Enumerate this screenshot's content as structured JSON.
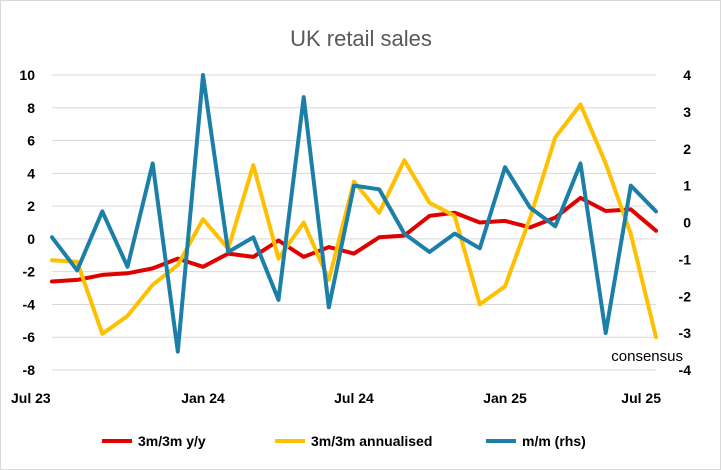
{
  "chart_data": {
    "type": "line",
    "title": "UK retail sales",
    "x": [
      "Jul 23",
      "Aug 23",
      "Sep 23",
      "Oct 23",
      "Nov 23",
      "Dec 23",
      "Jan 24",
      "Feb 24",
      "Mar 24",
      "Apr 24",
      "May 24",
      "Jun 24",
      "Jul 24",
      "Aug 24",
      "Sep 24",
      "Oct 24",
      "Nov 24",
      "Dec 24",
      "Jan 25",
      "Feb 25",
      "Mar 25",
      "Apr 25",
      "May 25",
      "Jun 25",
      "Jul 25"
    ],
    "x_tick_labels": [
      "Jul 23",
      "Jan 24",
      "Jul 24",
      "Jan 25",
      "Jul 25"
    ],
    "y_left": {
      "min": -8,
      "max": 10,
      "step": 2
    },
    "y_right": {
      "min": -4,
      "max": 4,
      "step": 1
    },
    "series": [
      {
        "name": "3m/3m y/y",
        "axis": "left",
        "color": "#e00000",
        "values": [
          -2.6,
          -2.5,
          -2.2,
          -2.1,
          -1.8,
          -1.2,
          -1.7,
          -0.9,
          -1.1,
          -0.1,
          -1.1,
          -0.5,
          -0.9,
          0.1,
          0.2,
          1.4,
          1.6,
          1.0,
          1.1,
          0.7,
          1.3,
          2.5,
          1.7,
          1.8,
          0.5
        ]
      },
      {
        "name": "3m/3m annualised",
        "axis": "left",
        "color": "#ffc000",
        "values": [
          -1.3,
          -1.4,
          -5.8,
          -4.7,
          -2.8,
          -1.6,
          1.2,
          -0.6,
          4.5,
          -1.2,
          1.0,
          -2.5,
          3.5,
          1.6,
          4.8,
          2.2,
          1.4,
          -4.0,
          -2.9,
          1.3,
          6.2,
          8.2,
          4.6,
          0.3,
          -6.0
        ]
      },
      {
        "name": "m/m (rhs)",
        "axis": "right",
        "color": "#1b7fa8",
        "values": [
          -0.4,
          -1.3,
          0.3,
          -1.2,
          1.6,
          -3.5,
          4.0,
          -0.8,
          -0.4,
          -2.1,
          3.4,
          -2.3,
          1.0,
          0.9,
          -0.3,
          -0.8,
          -0.3,
          -0.7,
          1.5,
          0.4,
          -0.1,
          1.6,
          -3.0,
          1.0,
          0.3
        ]
      }
    ],
    "annotations": [
      {
        "text": "consensus",
        "x": "Jul 25"
      }
    ],
    "legend_position": "bottom",
    "grid": "horizontal"
  }
}
